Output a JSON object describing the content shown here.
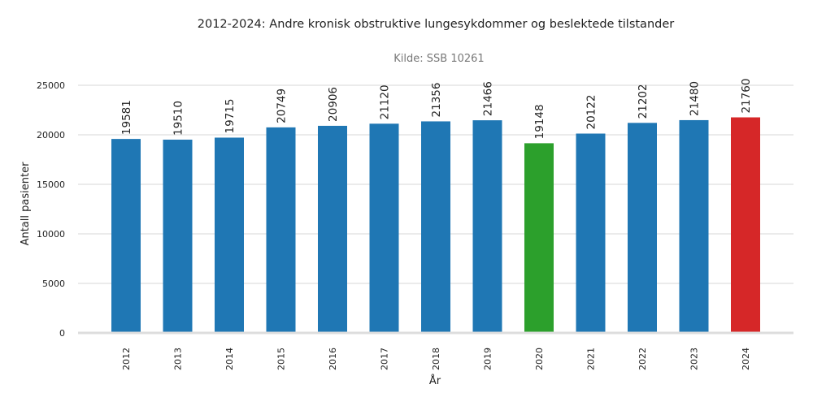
{
  "chart_data": {
    "type": "bar",
    "title": "2012-2024: Andre kronisk obstruktive lungesykdommer og beslektede tilstander",
    "subtitle": "Kilde: SSB 10261",
    "xlabel": "År",
    "ylabel": "Antall pasienter",
    "ylim": [
      0,
      25000
    ],
    "yticks": [
      0,
      5000,
      10000,
      15000,
      20000,
      25000
    ],
    "grid": true,
    "categories": [
      "2012",
      "2013",
      "2014",
      "2015",
      "2016",
      "2017",
      "2018",
      "2019",
      "2020",
      "2021",
      "2022",
      "2023",
      "2024"
    ],
    "values": [
      19581,
      19510,
      19715,
      20749,
      20906,
      21120,
      21356,
      21466,
      19148,
      20122,
      21202,
      21480,
      21760
    ],
    "colors": [
      "#1f77b4",
      "#1f77b4",
      "#1f77b4",
      "#1f77b4",
      "#1f77b4",
      "#1f77b4",
      "#1f77b4",
      "#1f77b4",
      "#2ca02c",
      "#1f77b4",
      "#1f77b4",
      "#1f77b4",
      "#d62728"
    ]
  }
}
